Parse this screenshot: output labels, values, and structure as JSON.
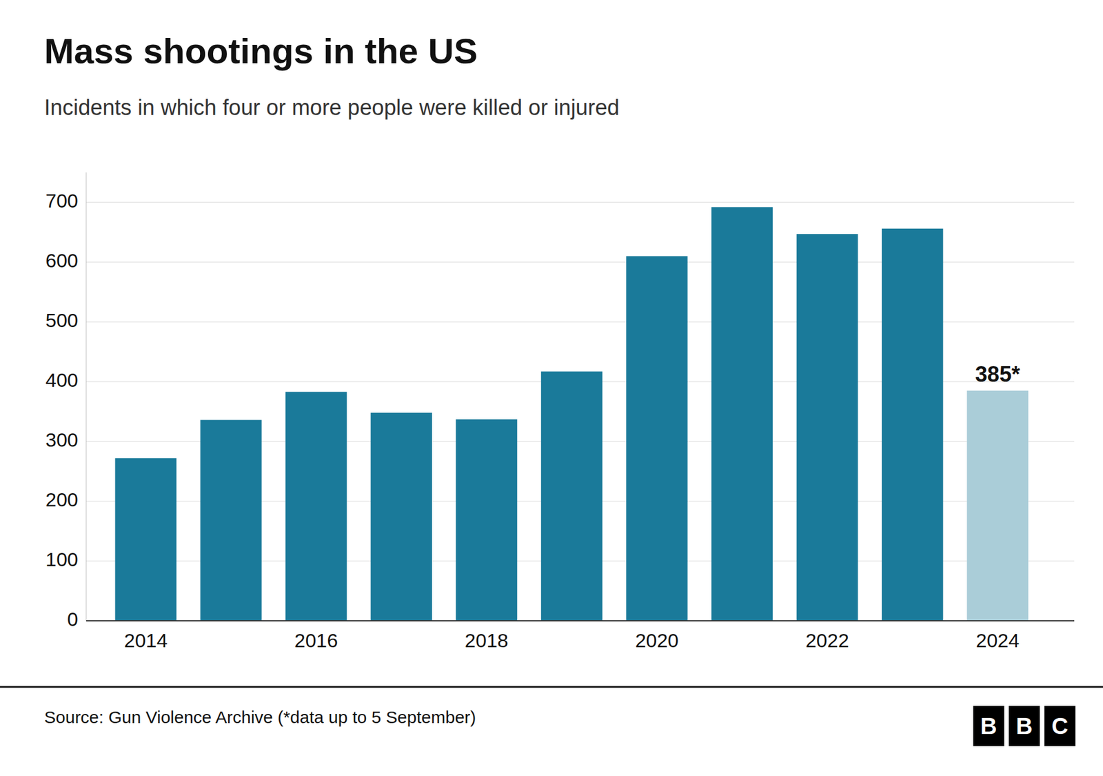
{
  "chart_data": {
    "type": "bar",
    "title": "Mass shootings in the US",
    "subtitle": "Incidents in which four or more people were killed or injured",
    "x": [
      2014,
      2015,
      2016,
      2017,
      2018,
      2019,
      2020,
      2021,
      2022,
      2023,
      2024
    ],
    "values": [
      272,
      336,
      383,
      348,
      337,
      417,
      610,
      692,
      647,
      656,
      385
    ],
    "colors": [
      "#1a7a9a",
      "#1a7a9a",
      "#1a7a9a",
      "#1a7a9a",
      "#1a7a9a",
      "#1a7a9a",
      "#1a7a9a",
      "#1a7a9a",
      "#1a7a9a",
      "#1a7a9a",
      "#aacdd8"
    ],
    "annotation": "385*",
    "xlim": [
      2013.3,
      2024.9
    ],
    "xticks": [
      2014,
      2016,
      2018,
      2020,
      2022,
      2024
    ],
    "ylim": [
      0,
      750
    ],
    "yticks": [
      0,
      100,
      200,
      300,
      400,
      500,
      600,
      700
    ],
    "grid": true,
    "source": "Source: Gun Violence Archive (*data up to 5 September)",
    "logo": [
      "B",
      "B",
      "C"
    ]
  }
}
